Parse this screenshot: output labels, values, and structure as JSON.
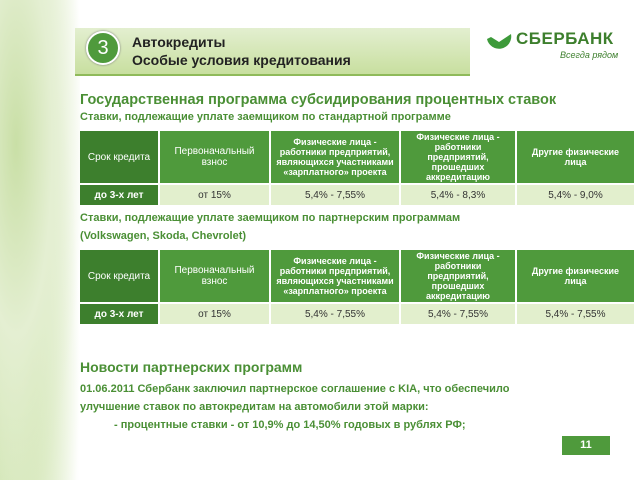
{
  "header": {
    "number": "3",
    "title": [
      "Автокредиты",
      "Особые условия кредитования"
    ]
  },
  "logo": {
    "name": "СБЕРБАНК",
    "slogan": "Всегда рядом"
  },
  "heading": "Государственная программа субсидирования процентных ставок",
  "sections": [
    {
      "caption": [
        "Ставки, подлежащие уплате заемщиком по стандартной программе"
      ],
      "table": {
        "columns": [
          "Срок кредита",
          "Первоначальный взнос",
          "Физические лица - работники предприятий, являющихся участниками «зарплатного» проекта",
          "Физические лица - работники предприятий, прошедших аккредитацию",
          "Другие физические лица"
        ],
        "rows": [
          [
            "до 3-х лет",
            "от 15%",
            "5,4% - 7,55%",
            "5,4% - 8,3%",
            "5,4% - 9,0%"
          ]
        ]
      }
    },
    {
      "caption": [
        "Ставки, подлежащие уплате заемщиком по партнерским программам",
        "(Volkswagen, Skoda, Chevrolet)"
      ],
      "table": {
        "columns": [
          "Срок кредита",
          "Первоначальный взнос",
          "Физические лица - работники предприятий, являющихся участниками «зарплатного» проекта",
          "Физические лица - работники предприятий, прошедших аккредитацию",
          "Другие физические лица"
        ],
        "rows": [
          [
            "до 3-х лет",
            "от 15%",
            "5,4% - 7,55%",
            "5,4% - 7,55%",
            "5,4% - 7,55%"
          ]
        ]
      }
    }
  ],
  "news": {
    "title": "Новости партнерских программ",
    "lines": [
      "01.06.2011 Сбербанк заключил партнерское соглашение с KIA, что обеспечило",
      "улучшение ставок по автокредитам на автомобили этой марки:",
      "- процентные ставки - от 10,9% до 14,50% годовых в рублях РФ;"
    ]
  },
  "page_number": "11"
}
